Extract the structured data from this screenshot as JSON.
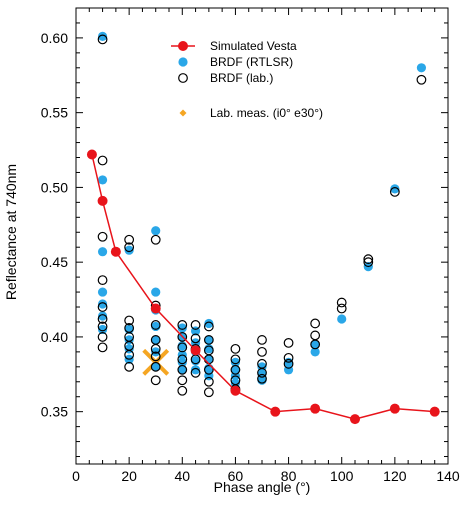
{
  "chart_data": {
    "type": "scatter",
    "title": "",
    "xlabel": "Phase angle (°)",
    "ylabel": "Reflectance at 740nm",
    "xlim": [
      0,
      140
    ],
    "ylim": [
      0.315,
      0.62
    ],
    "x_ticks": [
      0,
      20,
      40,
      60,
      80,
      100,
      120,
      140
    ],
    "x_tick_labels": [
      "0",
      "20",
      "40",
      "60",
      "80",
      "100",
      "120",
      "140"
    ],
    "y_ticks": [
      0.35,
      0.4,
      0.45,
      0.5,
      0.55,
      0.6
    ],
    "y_tick_labels": [
      "0.35",
      "0.40",
      "0.45",
      "0.50",
      "0.55",
      "0.60"
    ],
    "grid": false,
    "legend_position": "top-right",
    "series": [
      {
        "name": "Simulated Vesta",
        "kind": "line-with-markers",
        "color": "#e8141b",
        "points": [
          [
            6,
            0.522
          ],
          [
            10,
            0.491
          ],
          [
            15,
            0.457
          ],
          [
            30,
            0.419
          ],
          [
            45,
            0.391
          ],
          [
            60,
            0.364
          ],
          [
            75,
            0.35
          ],
          [
            90,
            0.352
          ],
          [
            105,
            0.345
          ],
          [
            120,
            0.352
          ],
          [
            135,
            0.35
          ]
        ]
      },
      {
        "name": "BRDF (RTLSR)",
        "kind": "filled-circle",
        "color": "#2aa7e8",
        "points": [
          [
            10,
            0.601
          ],
          [
            10,
            0.505
          ],
          [
            10,
            0.457
          ],
          [
            10,
            0.43
          ],
          [
            10,
            0.422
          ],
          [
            10,
            0.414
          ],
          [
            10,
            0.405
          ],
          [
            20,
            0.458
          ],
          [
            20,
            0.405
          ],
          [
            20,
            0.398
          ],
          [
            20,
            0.392
          ],
          [
            20,
            0.385
          ],
          [
            30,
            0.471
          ],
          [
            30,
            0.43
          ],
          [
            30,
            0.418
          ],
          [
            30,
            0.407
          ],
          [
            30,
            0.398
          ],
          [
            30,
            0.39
          ],
          [
            30,
            0.38
          ],
          [
            40,
            0.406
          ],
          [
            40,
            0.4
          ],
          [
            40,
            0.394
          ],
          [
            40,
            0.388
          ],
          [
            40,
            0.383
          ],
          [
            40,
            0.378
          ],
          [
            45,
            0.404
          ],
          [
            45,
            0.396
          ],
          [
            45,
            0.39
          ],
          [
            45,
            0.384
          ],
          [
            45,
            0.378
          ],
          [
            50,
            0.409
          ],
          [
            50,
            0.398
          ],
          [
            50,
            0.392
          ],
          [
            50,
            0.385
          ],
          [
            50,
            0.379
          ],
          [
            50,
            0.374
          ],
          [
            60,
            0.383
          ],
          [
            60,
            0.378
          ],
          [
            60,
            0.374
          ],
          [
            60,
            0.369
          ],
          [
            70,
            0.38
          ],
          [
            70,
            0.375
          ],
          [
            70,
            0.371
          ],
          [
            80,
            0.383
          ],
          [
            80,
            0.378
          ],
          [
            90,
            0.395
          ],
          [
            90,
            0.39
          ],
          [
            100,
            0.412
          ],
          [
            110,
            0.447
          ],
          [
            120,
            0.499
          ],
          [
            130,
            0.58
          ]
        ]
      },
      {
        "name": "BRDF (lab.)",
        "kind": "open-circle",
        "color": "#000000",
        "points": [
          [
            10,
            0.599
          ],
          [
            10,
            0.518
          ],
          [
            10,
            0.467
          ],
          [
            10,
            0.438
          ],
          [
            10,
            0.42
          ],
          [
            10,
            0.412
          ],
          [
            10,
            0.407
          ],
          [
            10,
            0.4
          ],
          [
            10,
            0.393
          ],
          [
            20,
            0.465
          ],
          [
            20,
            0.46
          ],
          [
            20,
            0.411
          ],
          [
            20,
            0.406
          ],
          [
            20,
            0.4
          ],
          [
            20,
            0.394
          ],
          [
            20,
            0.388
          ],
          [
            20,
            0.38
          ],
          [
            30,
            0.465
          ],
          [
            30,
            0.421
          ],
          [
            30,
            0.408
          ],
          [
            30,
            0.398
          ],
          [
            30,
            0.392
          ],
          [
            30,
            0.387
          ],
          [
            30,
            0.38
          ],
          [
            30,
            0.371
          ],
          [
            40,
            0.408
          ],
          [
            40,
            0.4
          ],
          [
            40,
            0.393
          ],
          [
            40,
            0.385
          ],
          [
            40,
            0.378
          ],
          [
            40,
            0.371
          ],
          [
            40,
            0.364
          ],
          [
            45,
            0.408
          ],
          [
            45,
            0.399
          ],
          [
            45,
            0.392
          ],
          [
            45,
            0.385
          ],
          [
            45,
            0.376
          ],
          [
            50,
            0.407
          ],
          [
            50,
            0.398
          ],
          [
            50,
            0.391
          ],
          [
            50,
            0.385
          ],
          [
            50,
            0.378
          ],
          [
            50,
            0.37
          ],
          [
            50,
            0.363
          ],
          [
            60,
            0.392
          ],
          [
            60,
            0.385
          ],
          [
            60,
            0.378
          ],
          [
            60,
            0.371
          ],
          [
            60,
            0.365
          ],
          [
            70,
            0.398
          ],
          [
            70,
            0.39
          ],
          [
            70,
            0.382
          ],
          [
            70,
            0.376
          ],
          [
            70,
            0.372
          ],
          [
            80,
            0.396
          ],
          [
            80,
            0.386
          ],
          [
            80,
            0.382
          ],
          [
            90,
            0.409
          ],
          [
            90,
            0.401
          ],
          [
            90,
            0.395
          ],
          [
            100,
            0.423
          ],
          [
            100,
            0.419
          ],
          [
            110,
            0.452
          ],
          [
            110,
            0.45
          ],
          [
            120,
            0.497
          ],
          [
            130,
            0.572
          ]
        ]
      },
      {
        "name": "Lab. meas. (i0° e30°)",
        "kind": "cross",
        "color": "#f5a623",
        "points": [
          [
            30,
            0.383
          ]
        ]
      }
    ]
  }
}
